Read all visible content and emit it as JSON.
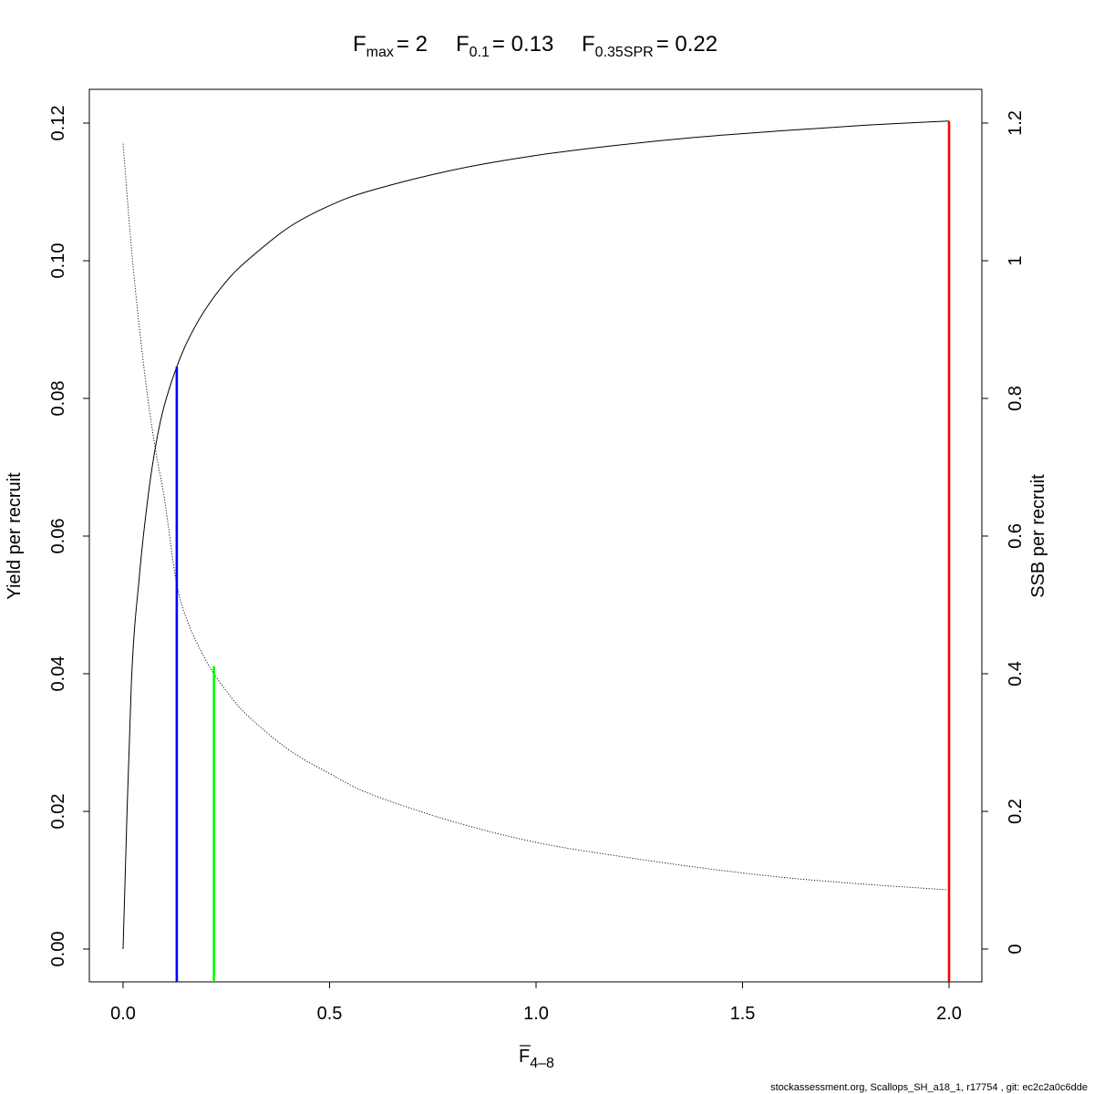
{
  "chart_data": {
    "type": "line",
    "title_parts": [
      {
        "base": "F",
        "sub": "max",
        "value": "= 2"
      },
      {
        "base": "F",
        "sub": "0.1",
        "value": "= 0.13"
      },
      {
        "base": "F",
        "sub": "0.35SPR",
        "value": "= 0.22"
      }
    ],
    "xlabel_base": "F",
    "xlabel_sub": "4–8",
    "ylabel_left": "Yield per recruit",
    "ylabel_right": "SSB per recruit",
    "xlim": [
      0,
      2
    ],
    "ylim_left": [
      0,
      0.12
    ],
    "ylim_right": [
      0,
      1.2
    ],
    "x_ticks": [
      0,
      0.5,
      1,
      1.5,
      2
    ],
    "x_tick_labels": [
      "0.0",
      "0.5",
      "1.0",
      "1.5",
      "2.0"
    ],
    "y_left_ticks": [
      0,
      0.02,
      0.04,
      0.06,
      0.08,
      0.1,
      0.12
    ],
    "y_left_tick_labels": [
      "0.00",
      "0.02",
      "0.04",
      "0.06",
      "0.08",
      "0.10",
      "0.12"
    ],
    "y_right_ticks": [
      0,
      0.2,
      0.4,
      0.6,
      0.8,
      1,
      1.2
    ],
    "y_right_tick_labels": [
      "0",
      "0.2",
      "0.4",
      "0.6",
      "0.8",
      "1",
      "1.2"
    ],
    "series": [
      {
        "axis": "left",
        "style": "solid",
        "x": [
          0,
          0.02,
          0.04,
          0.06,
          0.08,
          0.1,
          0.13,
          0.16,
          0.2,
          0.25,
          0.3,
          0.4,
          0.5,
          0.6,
          0.8,
          1.0,
          1.2,
          1.4,
          1.6,
          1.8,
          2.0
        ],
        "y": [
          0,
          0.0385,
          0.0545,
          0.0655,
          0.0735,
          0.079,
          0.0846,
          0.0888,
          0.093,
          0.097,
          0.1,
          0.1048,
          0.108,
          0.1102,
          0.1132,
          0.1153,
          0.1168,
          0.118,
          0.1189,
          0.1197,
          0.1203
        ]
      },
      {
        "axis": "right",
        "style": "dotted",
        "x": [
          0,
          0.02,
          0.04,
          0.06,
          0.08,
          0.1,
          0.13,
          0.16,
          0.2,
          0.22,
          0.25,
          0.3,
          0.4,
          0.5,
          0.6,
          0.8,
          1.0,
          1.2,
          1.4,
          1.6,
          1.8,
          2.0
        ],
        "y": [
          1.17,
          1.02,
          0.9,
          0.8,
          0.72,
          0.655,
          0.53,
          0.47,
          0.42,
          0.4,
          0.375,
          0.34,
          0.29,
          0.255,
          0.225,
          0.185,
          0.155,
          0.135,
          0.118,
          0.104,
          0.094,
          0.086
        ]
      }
    ],
    "reference_lines": [
      {
        "x": 0.13,
        "y": 0.0846,
        "color": "#0000ff"
      },
      {
        "x": 0.22,
        "y": 0.0411,
        "color": "#00ff00"
      },
      {
        "x": 2.0,
        "y": 0.1203,
        "color": "#ff0000"
      }
    ],
    "grid": false,
    "footer": "stockassessment.org, Scallops_SH_a18_1, r17754 , git: ec2c2a0c6dde"
  }
}
